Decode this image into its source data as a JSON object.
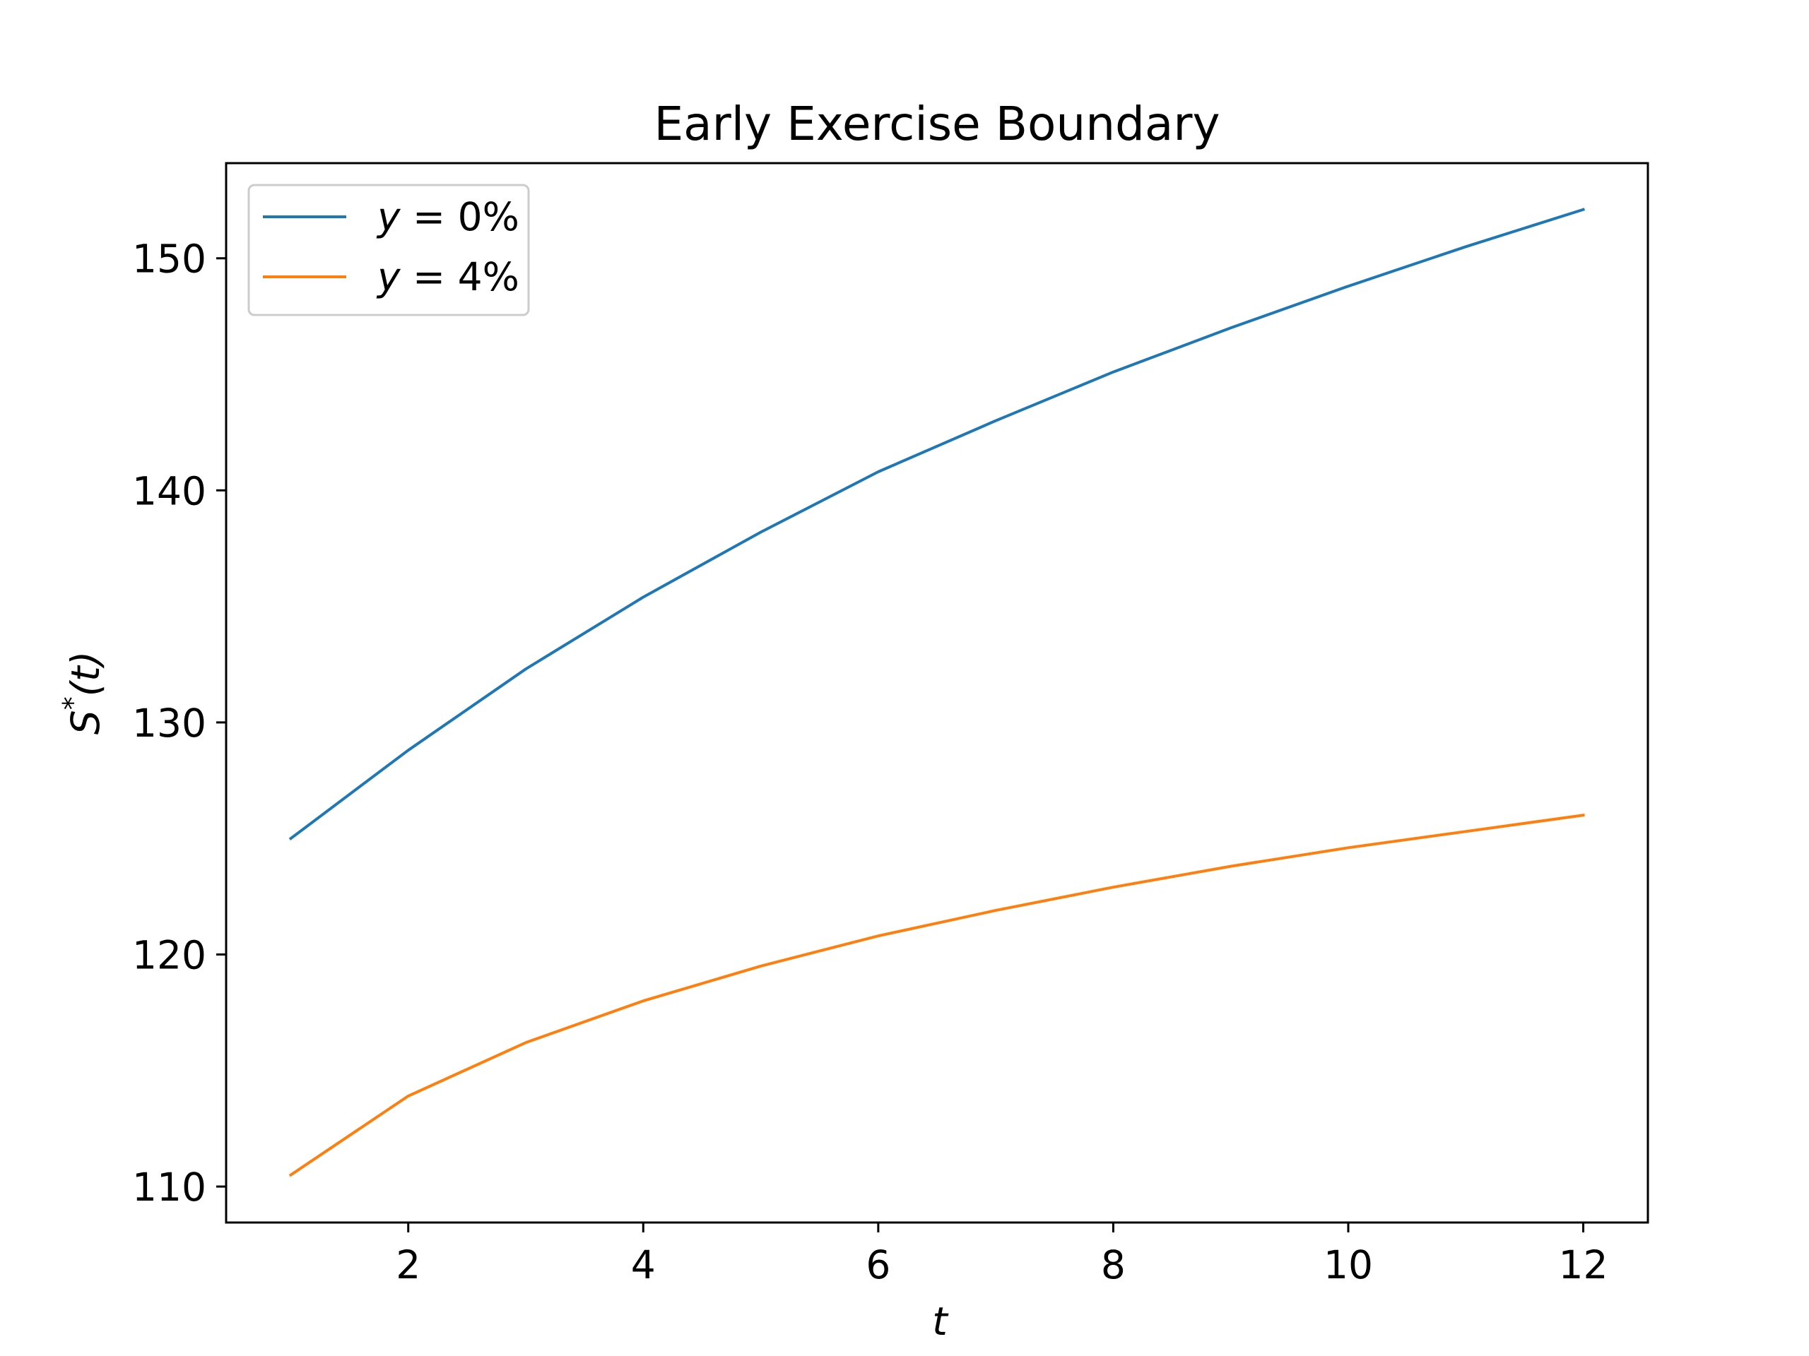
{
  "chart_data": {
    "type": "line",
    "title": "Early Exercise Boundary",
    "xlabel": "t",
    "ylabel": "S*(t)",
    "ylabel_main": "S",
    "ylabel_sup": "*",
    "ylabel_tail": "(t)",
    "xlim": [
      0.45,
      12.55
    ],
    "ylim": [
      108.45,
      154.1
    ],
    "xticks": [
      2,
      4,
      6,
      8,
      10,
      12
    ],
    "yticks": [
      110,
      120,
      130,
      140,
      150
    ],
    "grid": false,
    "legend_position": "upper left",
    "x": [
      1,
      2,
      3,
      4,
      5,
      6,
      7,
      8,
      9,
      10,
      11,
      12
    ],
    "series": [
      {
        "name": "y = 0%",
        "name_var": "y",
        "name_eq": " = 0%",
        "color": "#1f77b4",
        "values": [
          125.0,
          128.8,
          132.3,
          135.4,
          138.2,
          140.8,
          143.0,
          145.1,
          147.0,
          148.8,
          150.5,
          152.1
        ]
      },
      {
        "name": "y = 4%",
        "name_var": "y",
        "name_eq": " = 4%",
        "color": "#ff7f0e",
        "values": [
          110.5,
          113.9,
          116.2,
          118.0,
          119.5,
          120.8,
          121.9,
          122.9,
          123.8,
          124.6,
          125.3,
          126.0
        ]
      }
    ]
  }
}
